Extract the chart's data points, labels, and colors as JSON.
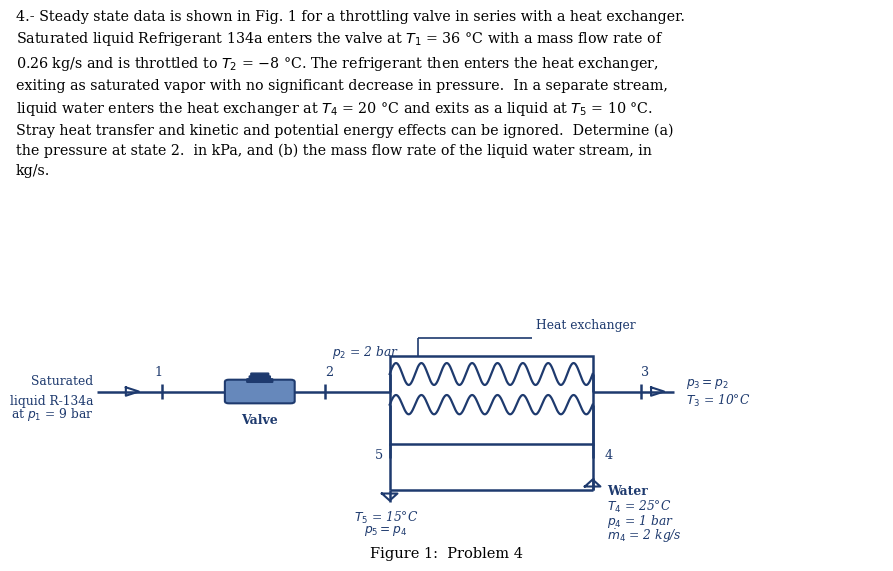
{
  "bg_color": "#ffffff",
  "diagram_color": "#1e3a6e",
  "text_color": "#000000",
  "fig_width": 8.93,
  "fig_height": 5.71,
  "paragraph_lines": [
    "4.- Steady state data is shown in Fig. 1 for a throttling valve in series with a heat exchanger.",
    "Saturated liquid Refrigerant 134a enters the valve at $T_1$ = 36 °C with a mass flow rate of",
    "0.26 kg/s and is throttled to $T_2$ = −8 °C. The refrigerant then enters the heat exchanger,",
    "exiting as saturated vapor with no significant decrease in pressure.  In a separate stream,",
    "liquid water enters the heat exchanger at $T_4$ = 20 °C and exits as a liquid at $T_5$ = 10 °C.",
    "Stray heat transfer and kinetic and potential energy effects can be ignored.  Determine (a)",
    "the pressure at state 2.  in kPa, and (b) the mass flow rate of the liquid water stream, in",
    "kg/s."
  ],
  "caption": "Figure 1:  Problem 4"
}
